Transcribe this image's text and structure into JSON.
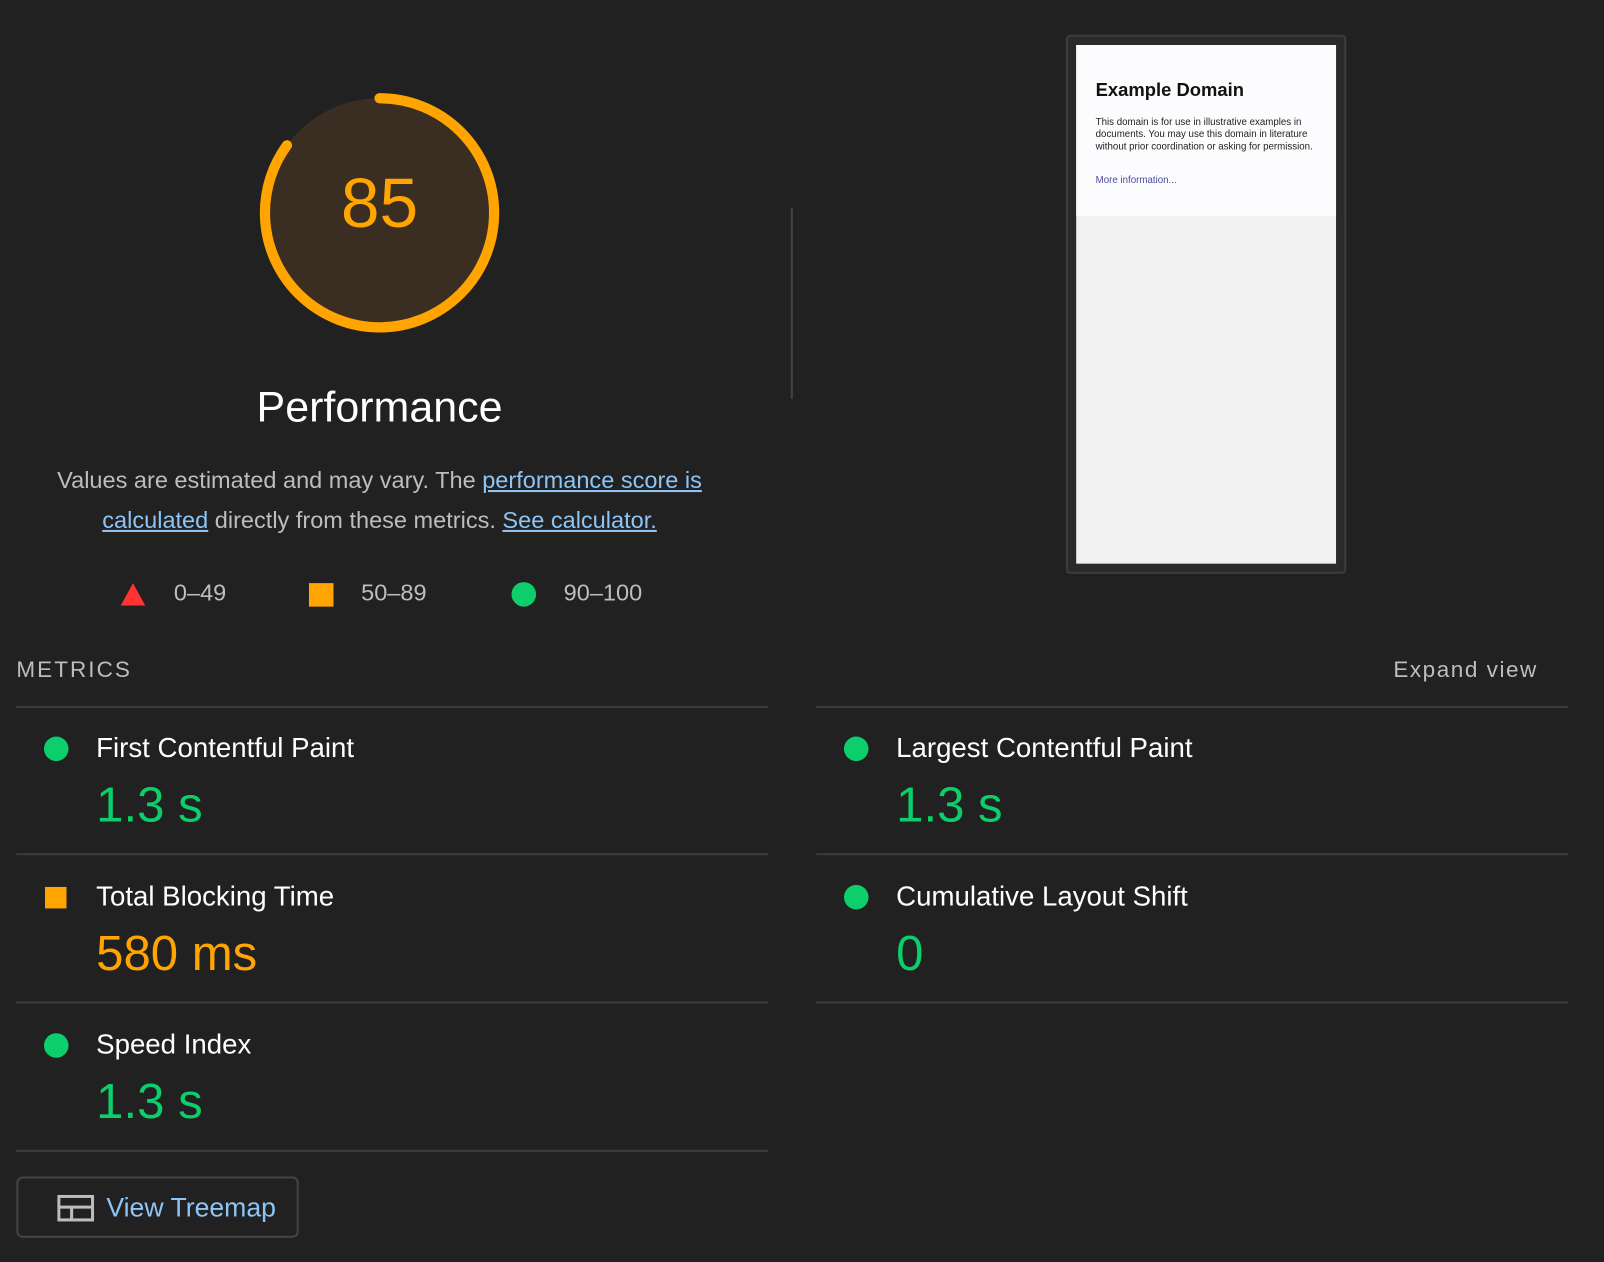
{
  "colors": {
    "pass": "#0cce6b",
    "average": "#ffa400",
    "fail": "#ff3333",
    "link": "#8ec4f6",
    "background": "#212121"
  },
  "gauge": {
    "score": 85,
    "title": "Performance"
  },
  "description": {
    "text1": "Values are estimated and may vary. The ",
    "link1": "performance score is calculated",
    "text2": " directly from these metrics. ",
    "link2": "See calculator."
  },
  "legend": [
    {
      "icon": "triangle-icon",
      "label": "0–49"
    },
    {
      "icon": "square-icon",
      "label": "50–89"
    },
    {
      "icon": "circle-icon",
      "label": "90–100"
    }
  ],
  "screenshot": {
    "title": "Example Domain",
    "body": "This domain is for use in illustrative examples in documents. You may use this domain in literature without prior coordination or asking for permission.",
    "link": "More information..."
  },
  "metrics": {
    "heading": "METRICS",
    "expand_label": "Expand view",
    "items": [
      {
        "label": "First Contentful Paint",
        "value": "1.3 s",
        "rating": "pass"
      },
      {
        "label": "Largest Contentful Paint",
        "value": "1.3 s",
        "rating": "pass"
      },
      {
        "label": "Total Blocking Time",
        "value": "580 ms",
        "rating": "average"
      },
      {
        "label": "Cumulative Layout Shift",
        "value": "0",
        "rating": "pass"
      },
      {
        "label": "Speed Index",
        "value": "1.3 s",
        "rating": "pass"
      }
    ]
  },
  "treemap_button": {
    "label": "View Treemap",
    "icon": "treemap-icon"
  }
}
